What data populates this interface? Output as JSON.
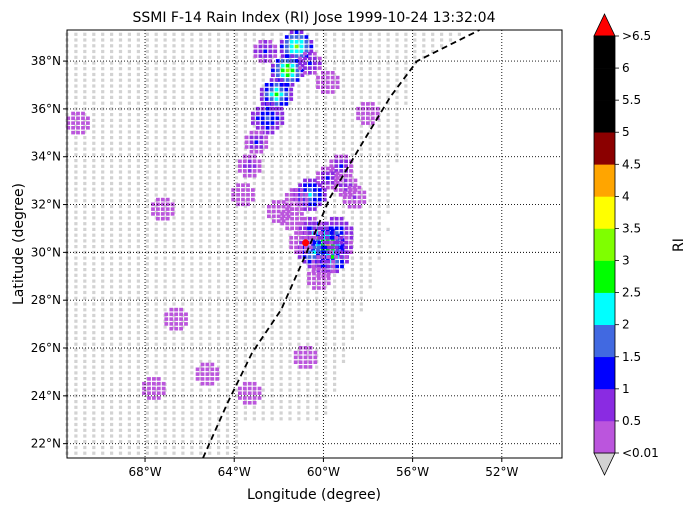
{
  "chart_data": {
    "type": "heatmap",
    "title": "SSMI F-14 Rain Index (RI) Jose 1999-10-24 13:32:04",
    "xlabel": "Longitude (degree)",
    "ylabel": "Latitude (degree)",
    "xlim": [
      -71.5,
      -49.3
    ],
    "ylim": [
      21.4,
      39.3
    ],
    "xticks": [
      {
        "value": -68,
        "label": "68°W"
      },
      {
        "value": -64,
        "label": "64°W"
      },
      {
        "value": -60,
        "label": "60°W"
      },
      {
        "value": -56,
        "label": "56°W"
      },
      {
        "value": -52,
        "label": "52°W"
      }
    ],
    "yticks": [
      {
        "value": 22,
        "label": "22°N"
      },
      {
        "value": 24,
        "label": "24°N"
      },
      {
        "value": 26,
        "label": "26°N"
      },
      {
        "value": 28,
        "label": "28°N"
      },
      {
        "value": 30,
        "label": "30°N"
      },
      {
        "value": 32,
        "label": "32°N"
      },
      {
        "value": 34,
        "label": "34°N"
      },
      {
        "value": 36,
        "label": "36°N"
      },
      {
        "value": 38,
        "label": "38°N"
      }
    ],
    "grid": true,
    "colorbar": {
      "label": "RI",
      "labels": [
        "<0.01",
        "0.5",
        "1",
        "1.5",
        "2",
        "2.5",
        "3",
        "3.5",
        "4",
        "4.5",
        "5",
        "5.5",
        "6",
        ">6.5"
      ],
      "colors": [
        "#bb55dd",
        "#8a2be2",
        "#0000ff",
        "#4169e1",
        "#00ffff",
        "#00ff00",
        "#7fff00",
        "#ffff00",
        "#ffa500",
        "#8b0000",
        "#000000",
        "#000000",
        "#000000"
      ],
      "over_color": "#ff0000",
      "under_color": "#d3d3d3"
    },
    "track": [
      [
        -65.4,
        21.4
      ],
      [
        -64.3,
        23.7
      ],
      [
        -63.2,
        25.8
      ],
      [
        -61.9,
        27.6
      ],
      [
        -60.8,
        29.9
      ],
      [
        -59.7,
        32.3
      ],
      [
        -58.3,
        34.5
      ],
      [
        -57.0,
        36.5
      ],
      [
        -55.8,
        38.0
      ],
      [
        -53.0,
        39.3
      ]
    ],
    "storm_center": [
      -60.8,
      30.4
    ],
    "swath": {
      "no_rain_color": "#d3d3d3",
      "rain_cells": [
        {
          "lon": -59.8,
          "lat": 30.3,
          "value": 3.7
        },
        {
          "lon": -60.2,
          "lat": 30.6,
          "value": 3.2
        },
        {
          "lon": -59.6,
          "lat": 29.8,
          "value": 2.8
        },
        {
          "lon": -60.4,
          "lat": 30.0,
          "value": 2.2
        },
        {
          "lon": -59.4,
          "lat": 30.8,
          "value": 1.7
        },
        {
          "lon": -60.6,
          "lat": 31.0,
          "value": 1.3
        },
        {
          "lon": -59.2,
          "lat": 30.2,
          "value": 1.3
        },
        {
          "lon": -60.0,
          "lat": 29.4,
          "value": 1.0
        },
        {
          "lon": -61.0,
          "lat": 30.4,
          "value": 0.6
        },
        {
          "lon": -60.2,
          "lat": 28.9,
          "value": 0.3
        },
        {
          "lon": -59.2,
          "lat": 33.6,
          "value": 1.1
        },
        {
          "lon": -59.8,
          "lat": 33.1,
          "value": 1.1
        },
        {
          "lon": -59.0,
          "lat": 32.8,
          "value": 0.7
        },
        {
          "lon": -58.6,
          "lat": 32.3,
          "value": 0.5
        },
        {
          "lon": -60.6,
          "lat": 32.4,
          "value": 2.1
        },
        {
          "lon": -61.2,
          "lat": 32.2,
          "value": 0.4
        },
        {
          "lon": -62.0,
          "lat": 31.7,
          "value": 0.3
        },
        {
          "lon": -61.4,
          "lat": 31.4,
          "value": 0.3
        },
        {
          "lon": -61.2,
          "lat": 38.6,
          "value": 3.1
        },
        {
          "lon": -61.6,
          "lat": 37.6,
          "value": 3.3
        },
        {
          "lon": -62.1,
          "lat": 36.6,
          "value": 2.7
        },
        {
          "lon": -62.5,
          "lat": 35.6,
          "value": 1.8
        },
        {
          "lon": -63.0,
          "lat": 34.6,
          "value": 1.1
        },
        {
          "lon": -63.3,
          "lat": 33.6,
          "value": 0.8
        },
        {
          "lon": -63.6,
          "lat": 32.4,
          "value": 0.4
        },
        {
          "lon": -62.6,
          "lat": 38.4,
          "value": 1.2
        },
        {
          "lon": -60.6,
          "lat": 37.9,
          "value": 1.3
        },
        {
          "lon": -58.0,
          "lat": 35.8,
          "value": 0.4
        },
        {
          "lon": -71.0,
          "lat": 35.4,
          "value": 0.3
        },
        {
          "lon": -67.2,
          "lat": 31.8,
          "value": 0.2
        },
        {
          "lon": -66.6,
          "lat": 27.2,
          "value": 0.3
        },
        {
          "lon": -65.2,
          "lat": 24.9,
          "value": 0.2
        },
        {
          "lon": -67.6,
          "lat": 24.3,
          "value": 0.2
        },
        {
          "lon": -63.3,
          "lat": 24.1,
          "value": 0.2
        },
        {
          "lon": -60.8,
          "lat": 25.6,
          "value": 0.2
        },
        {
          "lon": -59.8,
          "lat": 37.1,
          "value": 0.2
        }
      ]
    }
  }
}
